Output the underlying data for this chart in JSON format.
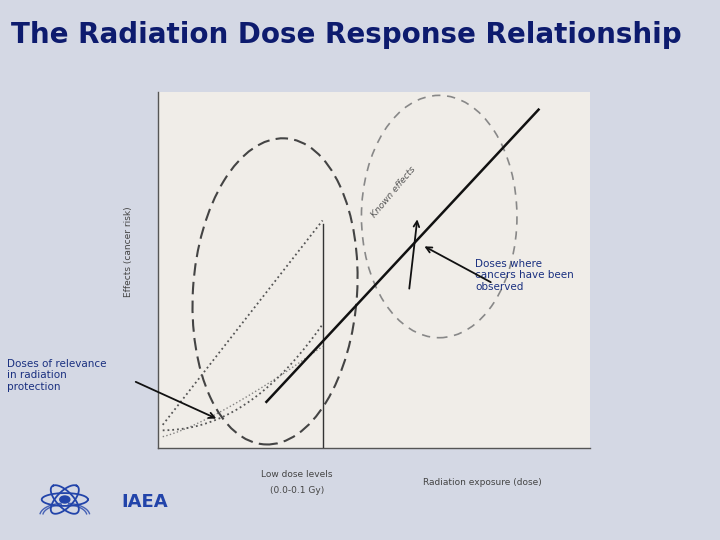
{
  "title": "The Radiation Dose Response Relationship",
  "title_bg": "#c5cad8",
  "slide_bg": "#d4d8e4",
  "chart_bg": "#f0ede8",
  "title_color": "#0d1b6e",
  "title_fontsize": 20,
  "annotation_color": "#1a3080",
  "line_color": "#111111",
  "ellipse_dash_color": "#444444",
  "ellipse_dot_color": "#888888",
  "ylabel": "Effects (cancer risk)",
  "xlabel_main": "Radiation exposure (dose)",
  "xlabel_low": "Low dose levels",
  "xlabel_low2": "(0.0-0.1 Gy)",
  "annotation_left": "Doses of relevance\nin radiation\nprotection",
  "annotation_right": "Doses where\ncancers have been\nobserved",
  "known_effects": "Known effects",
  "iaea_text": "IAEA",
  "iaea_color": "#2244aa"
}
